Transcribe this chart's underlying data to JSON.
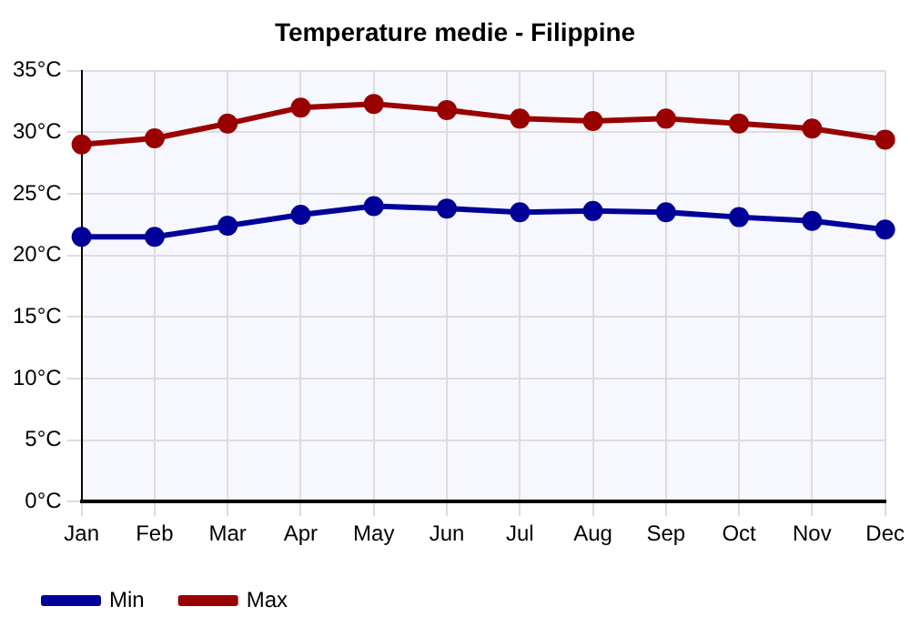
{
  "chart_data": {
    "type": "line",
    "title": "Temperature medie - Filippine",
    "categories": [
      "Jan",
      "Feb",
      "Mar",
      "Apr",
      "May",
      "Jun",
      "Jul",
      "Aug",
      "Sep",
      "Oct",
      "Nov",
      "Dec"
    ],
    "series": [
      {
        "name": "Min",
        "color": "#000099",
        "values": [
          21.5,
          21.5,
          22.4,
          23.3,
          24.0,
          23.8,
          23.5,
          23.6,
          23.5,
          23.1,
          22.8,
          22.1
        ]
      },
      {
        "name": "Max",
        "color": "#990000",
        "values": [
          29.0,
          29.5,
          30.7,
          32.0,
          32.3,
          31.8,
          31.1,
          30.9,
          31.1,
          30.7,
          30.3,
          29.4
        ]
      }
    ],
    "ylim": [
      0,
      35
    ],
    "yticks": [
      {
        "value": 0,
        "label": "0°C"
      },
      {
        "value": 5,
        "label": "5°C"
      },
      {
        "value": 10,
        "label": "10°C"
      },
      {
        "value": 15,
        "label": "15°C"
      },
      {
        "value": 20,
        "label": "20°C"
      },
      {
        "value": 25,
        "label": "25°C"
      },
      {
        "value": 30,
        "label": "30°C"
      },
      {
        "value": 35,
        "label": "35°C"
      }
    ],
    "grid": true,
    "legend": "bottom left",
    "marker": "circle",
    "line_style": "solid"
  }
}
